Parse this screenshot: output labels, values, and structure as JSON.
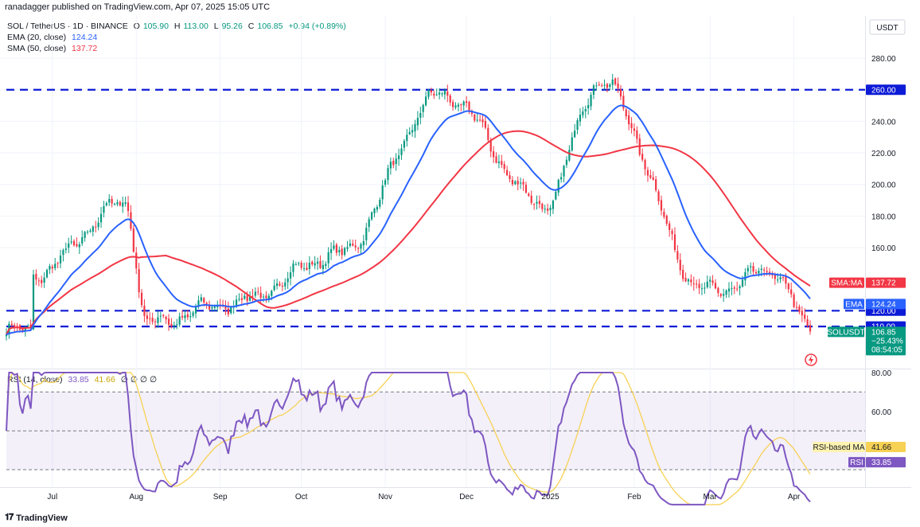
{
  "publisher": "ranadagger published on TradingView.com, Apr 07, 2025 15:05 UTC",
  "legend": {
    "symbol": "SOL / TetherUS · 1D · BINANCE",
    "o_label": "O",
    "o": "105.90",
    "h_label": "H",
    "h": "113.00",
    "l_label": "L",
    "l": "95.26",
    "c_label": "C",
    "c": "106.85",
    "change": "+0.94 (+0.89%)",
    "ema_label": "EMA (20, close)",
    "ema_value": "124.24",
    "sma_label": "SMA (50, close)",
    "sma_value": "137.72",
    "rsi_label": "RSI (14, close)",
    "rsi_value": "33.85",
    "rsi_ma_value": "41.66",
    "rsi_extra": "∅ ∅ ∅ ∅"
  },
  "currency": "USDT",
  "brand": "TradingView",
  "colors": {
    "up": "#089981",
    "down": "#f23645",
    "ema": "#2962ff",
    "sma": "#f23645",
    "levels": "#0c1bd6",
    "rsi": "#7e57c2",
    "rsi_ma": "#f7d154"
  },
  "chart_data": [
    {
      "type": "candlestick",
      "title": "SOL / TetherUS · 1D · BINANCE",
      "x_ticks": [
        "Jul",
        "Aug",
        "Sep",
        "Oct",
        "Nov",
        "Dec",
        "2025",
        "Feb",
        "Mar",
        "Apr"
      ],
      "y_ticks": [
        "160.00",
        "180.00",
        "200.00",
        "220.00",
        "240.00",
        "260.00",
        "280.00"
      ],
      "ylim": [
        94,
        300
      ],
      "horizontal_levels": [
        260,
        120,
        110
      ],
      "price_labels": [
        {
          "label": "260.00",
          "value": 260
        },
        {
          "label": "120.00",
          "value": 120
        },
        {
          "label": "110.00",
          "value": 110
        }
      ],
      "last_price": {
        "symbol": "SOLUSDT",
        "price": "106.85",
        "change": "−25.43%",
        "countdown": "08:54:05",
        "value": 106.85
      },
      "ema_tag": {
        "label": "EMA",
        "value": "124.24"
      },
      "sma_tag": {
        "label": "SMA:MA",
        "value": "137.72"
      },
      "key_points": [
        {
          "date": "2024-06-24",
          "close": 143
        },
        {
          "date": "2024-07-28",
          "close": 188
        },
        {
          "date": "2024-08-05",
          "close": 112
        },
        {
          "date": "2024-09-06",
          "close": 125
        },
        {
          "date": "2024-10-14",
          "close": 155
        },
        {
          "date": "2024-11-22",
          "close": 257
        },
        {
          "date": "2024-12-30",
          "close": 187
        },
        {
          "date": "2025-01-19",
          "close": 265
        },
        {
          "date": "2025-02-28",
          "close": 132
        },
        {
          "date": "2025-03-25",
          "close": 145
        },
        {
          "date": "2025-04-07",
          "close": 106.85
        }
      ],
      "ema_20_last": 124.24,
      "sma_50_last": 137.72
    },
    {
      "type": "line",
      "title": "RSI (14, close)",
      "y_ticks": [
        "60.00",
        "80.00"
      ],
      "ylim": [
        10,
        82
      ],
      "bands": [
        70,
        50,
        30
      ],
      "series": [
        {
          "name": "RSI",
          "last": 33.85
        },
        {
          "name": "RSI-based MA",
          "last": 41.66
        }
      ],
      "tags": [
        {
          "label": "RSI-based MA",
          "value": "41.66"
        },
        {
          "label": "RSI",
          "value": "33.85"
        }
      ]
    }
  ]
}
